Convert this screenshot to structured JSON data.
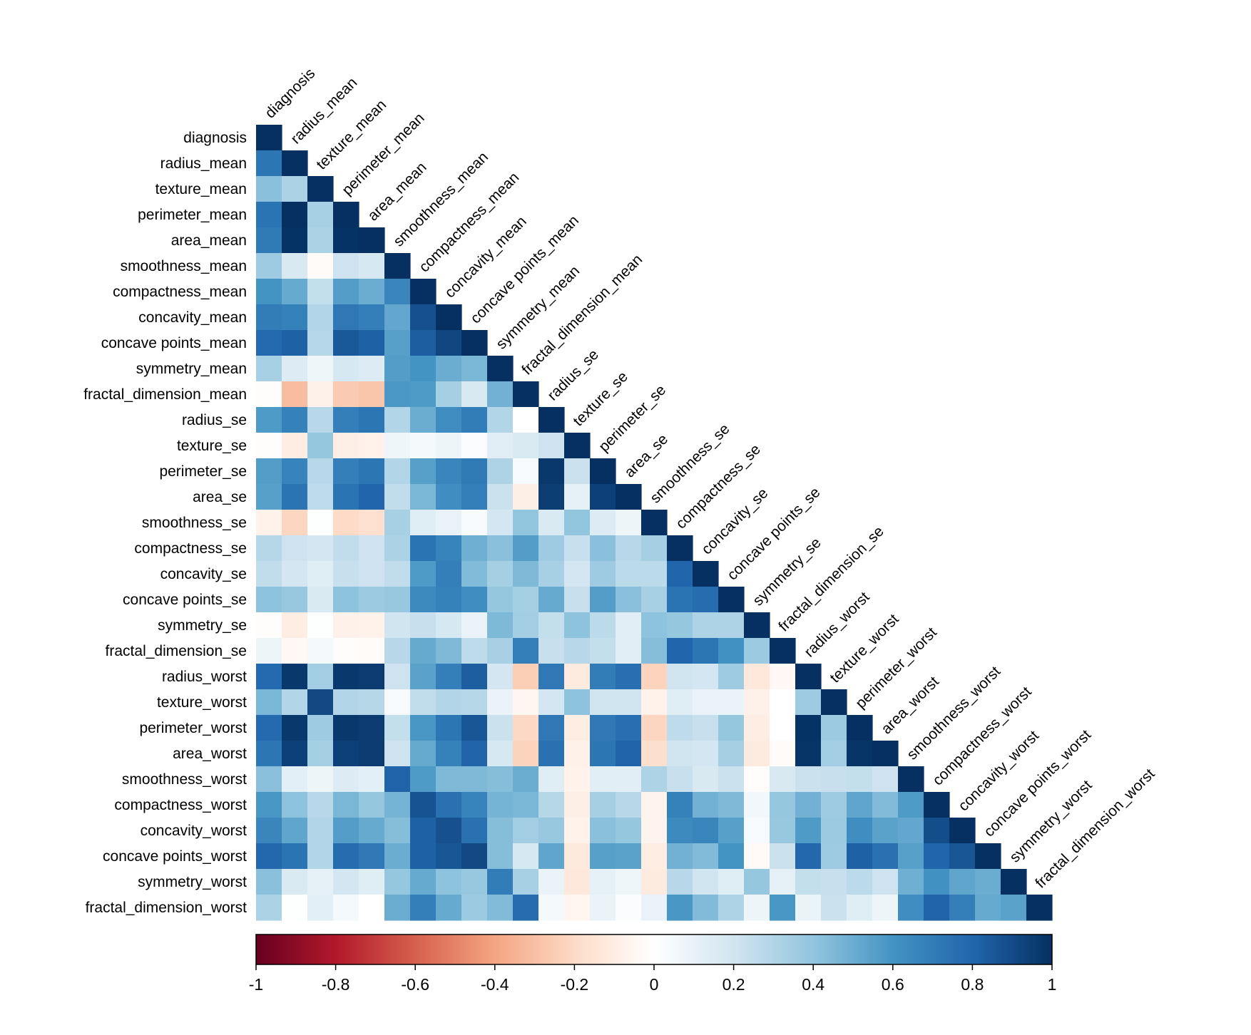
{
  "chart_data": {
    "type": "heatmap",
    "title": "",
    "variables": [
      "diagnosis",
      "radius_mean",
      "texture_mean",
      "perimeter_mean",
      "area_mean",
      "smoothness_mean",
      "compactness_mean",
      "concavity_mean",
      "concave points_mean",
      "symmetry_mean",
      "fractal_dimension_mean",
      "radius_se",
      "texture_se",
      "perimeter_se",
      "area_se",
      "smoothness_se",
      "compactness_se",
      "concavity_se",
      "concave points_se",
      "symmetry_se",
      "fractal_dimension_se",
      "radius_worst",
      "texture_worst",
      "perimeter_worst",
      "area_worst",
      "smoothness_worst",
      "compactness_worst",
      "concavity_worst",
      "concave points_worst",
      "symmetry_worst",
      "fractal_dimension_worst"
    ],
    "layout": "lower-triangle",
    "matrix": [
      [
        1.0
      ],
      [
        0.73,
        1.0
      ],
      [
        0.42,
        0.32,
        1.0
      ],
      [
        0.74,
        1.0,
        0.33,
        1.0
      ],
      [
        0.71,
        0.99,
        0.32,
        0.99,
        1.0
      ],
      [
        0.36,
        0.17,
        -0.02,
        0.21,
        0.18,
        1.0
      ],
      [
        0.6,
        0.51,
        0.24,
        0.56,
        0.5,
        0.66,
        1.0
      ],
      [
        0.7,
        0.68,
        0.3,
        0.72,
        0.69,
        0.52,
        0.88,
        1.0
      ],
      [
        0.78,
        0.82,
        0.29,
        0.85,
        0.82,
        0.55,
        0.83,
        0.92,
        1.0
      ],
      [
        0.33,
        0.15,
        0.07,
        0.18,
        0.15,
        0.56,
        0.6,
        0.5,
        0.46,
        1.0
      ],
      [
        -0.01,
        -0.31,
        -0.08,
        -0.26,
        -0.28,
        0.58,
        0.57,
        0.34,
        0.17,
        0.48,
        1.0
      ],
      [
        0.57,
        0.68,
        0.28,
        0.69,
        0.73,
        0.3,
        0.5,
        0.63,
        0.7,
        0.3,
        0.0,
        1.0
      ],
      [
        -0.01,
        -0.1,
        0.39,
        -0.09,
        -0.07,
        0.07,
        0.05,
        0.08,
        0.02,
        0.13,
        0.16,
        0.21,
        1.0
      ],
      [
        0.56,
        0.67,
        0.28,
        0.69,
        0.73,
        0.3,
        0.55,
        0.66,
        0.71,
        0.31,
        0.04,
        0.97,
        0.22,
        1.0
      ],
      [
        0.55,
        0.74,
        0.26,
        0.74,
        0.8,
        0.25,
        0.46,
        0.62,
        0.69,
        0.22,
        -0.09,
        0.95,
        0.11,
        0.94,
        1.0
      ],
      [
        -0.07,
        -0.22,
        0.01,
        -0.2,
        -0.17,
        0.33,
        0.14,
        0.1,
        0.03,
        0.19,
        0.4,
        0.16,
        0.4,
        0.15,
        0.08,
        1.0
      ],
      [
        0.29,
        0.21,
        0.19,
        0.25,
        0.21,
        0.32,
        0.74,
        0.67,
        0.49,
        0.42,
        0.56,
        0.36,
        0.23,
        0.42,
        0.28,
        0.34,
        1.0
      ],
      [
        0.25,
        0.19,
        0.14,
        0.23,
        0.21,
        0.25,
        0.57,
        0.69,
        0.44,
        0.34,
        0.45,
        0.33,
        0.19,
        0.36,
        0.27,
        0.27,
        0.8,
        1.0
      ],
      [
        0.41,
        0.38,
        0.16,
        0.41,
        0.37,
        0.38,
        0.64,
        0.68,
        0.62,
        0.39,
        0.34,
        0.51,
        0.23,
        0.56,
        0.42,
        0.33,
        0.74,
        0.77,
        1.0
      ],
      [
        -0.01,
        -0.1,
        0.01,
        -0.08,
        -0.07,
        0.2,
        0.23,
        0.18,
        0.1,
        0.45,
        0.35,
        0.24,
        0.41,
        0.27,
        0.13,
        0.41,
        0.39,
        0.31,
        0.31,
        1.0
      ],
      [
        0.08,
        -0.04,
        0.05,
        -0.01,
        -0.02,
        0.28,
        0.51,
        0.45,
        0.26,
        0.33,
        0.69,
        0.23,
        0.28,
        0.24,
        0.13,
        0.43,
        0.8,
        0.73,
        0.61,
        0.37,
        1.0
      ],
      [
        0.78,
        0.97,
        0.35,
        0.97,
        0.96,
        0.21,
        0.54,
        0.69,
        0.83,
        0.19,
        -0.25,
        0.72,
        -0.11,
        0.7,
        0.76,
        -0.23,
        0.2,
        0.19,
        0.36,
        -0.13,
        -0.04,
        1.0
      ],
      [
        0.46,
        0.3,
        0.91,
        0.3,
        0.29,
        0.04,
        0.25,
        0.3,
        0.29,
        0.09,
        -0.05,
        0.19,
        0.41,
        0.2,
        0.2,
        -0.07,
        0.14,
        0.1,
        0.09,
        -0.08,
        0.0,
        0.36,
        1.0
      ],
      [
        0.78,
        0.97,
        0.36,
        0.97,
        0.96,
        0.24,
        0.59,
        0.73,
        0.86,
        0.22,
        -0.21,
        0.72,
        -0.1,
        0.72,
        0.76,
        -0.22,
        0.26,
        0.23,
        0.39,
        -0.1,
        0.0,
        0.99,
        0.37,
        1.0
      ],
      [
        0.73,
        0.94,
        0.34,
        0.94,
        0.96,
        0.21,
        0.51,
        0.68,
        0.81,
        0.18,
        -0.23,
        0.75,
        -0.08,
        0.73,
        0.81,
        -0.18,
        0.2,
        0.19,
        0.34,
        -0.11,
        -0.02,
        0.98,
        0.35,
        0.98,
        1.0
      ],
      [
        0.42,
        0.12,
        0.08,
        0.15,
        0.12,
        0.81,
        0.57,
        0.45,
        0.45,
        0.43,
        0.5,
        0.14,
        -0.07,
        0.13,
        0.13,
        0.31,
        0.23,
        0.17,
        0.22,
        -0.01,
        0.17,
        0.22,
        0.23,
        0.24,
        0.21,
        1.0
      ],
      [
        0.59,
        0.41,
        0.28,
        0.46,
        0.39,
        0.47,
        0.87,
        0.75,
        0.67,
        0.47,
        0.46,
        0.29,
        -0.09,
        0.34,
        0.28,
        -0.06,
        0.68,
        0.48,
        0.45,
        0.06,
        0.39,
        0.48,
        0.36,
        0.53,
        0.44,
        0.57,
        1.0
      ],
      [
        0.66,
        0.53,
        0.3,
        0.56,
        0.51,
        0.43,
        0.82,
        0.88,
        0.75,
        0.43,
        0.35,
        0.38,
        -0.07,
        0.42,
        0.39,
        -0.06,
        0.64,
        0.66,
        0.55,
        0.04,
        0.38,
        0.57,
        0.37,
        0.62,
        0.54,
        0.52,
        0.89,
        1.0
      ],
      [
        0.79,
        0.74,
        0.3,
        0.77,
        0.72,
        0.5,
        0.82,
        0.86,
        0.91,
        0.43,
        0.18,
        0.53,
        -0.12,
        0.55,
        0.54,
        -0.1,
        0.48,
        0.44,
        0.6,
        -0.03,
        0.22,
        0.79,
        0.36,
        0.82,
        0.75,
        0.55,
        0.8,
        0.86,
        1.0
      ],
      [
        0.42,
        0.16,
        0.11,
        0.19,
        0.14,
        0.39,
        0.51,
        0.41,
        0.38,
        0.7,
        0.33,
        0.09,
        -0.13,
        0.11,
        0.07,
        -0.11,
        0.28,
        0.2,
        0.14,
        0.39,
        0.11,
        0.24,
        0.23,
        0.27,
        0.21,
        0.49,
        0.61,
        0.53,
        0.5,
        1.0
      ],
      [
        0.32,
        0.01,
        0.12,
        0.05,
        0.0,
        0.5,
        0.69,
        0.51,
        0.37,
        0.44,
        0.77,
        0.05,
        -0.05,
        0.09,
        0.02,
        0.1,
        0.59,
        0.44,
        0.31,
        0.08,
        0.59,
        0.09,
        0.22,
        0.14,
        0.08,
        0.62,
        0.81,
        0.69,
        0.51,
        0.54,
        1.0
      ]
    ],
    "colorbar": {
      "range": [
        -1,
        1
      ],
      "ticks": [
        "-1",
        "-0.8",
        "-0.6",
        "-0.4",
        "-0.2",
        "0",
        "0.2",
        "0.4",
        "0.6",
        "0.8",
        "1"
      ],
      "placement": "bottom"
    },
    "colors": [
      "#67001F",
      "#B2182B",
      "#D6604D",
      "#F4A582",
      "#FDDBC7",
      "#FFFFFF",
      "#D1E5F0",
      "#92C5DE",
      "#4393C3",
      "#2166AC",
      "#053061"
    ]
  }
}
